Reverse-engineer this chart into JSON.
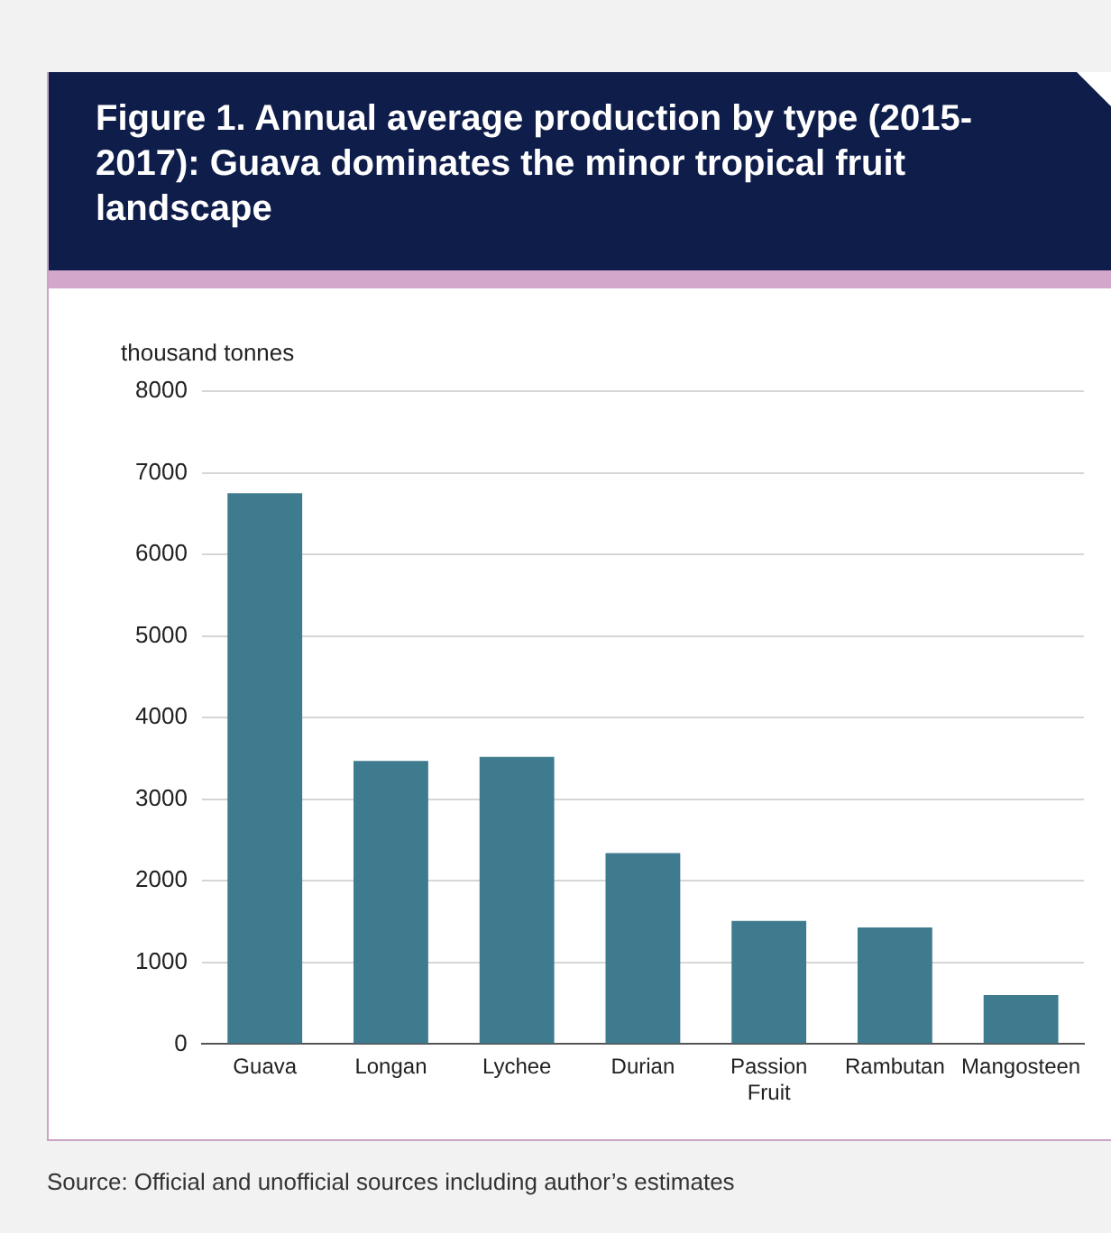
{
  "chart_data": {
    "type": "bar",
    "title": "Figure 1. Annual average production by type (2015-2017): Guava dominates the minor tropical fruit landscape",
    "ylabel": "thousand tonnes",
    "categories": [
      "Guava",
      "Longan",
      "Lychee",
      "Durian",
      "Passion Fruit",
      "Rambutan",
      "Mangosteen"
    ],
    "values": [
      6750,
      3470,
      3520,
      2340,
      1510,
      1430,
      600
    ],
    "color": "#3e7b8f",
    "ylim": [
      0,
      8000
    ],
    "yticks": [
      0,
      1000,
      2000,
      3000,
      4000,
      5000,
      6000,
      7000,
      8000
    ],
    "grid": "y",
    "legend": false,
    "annotations": [
      "Source: Official and unofficial sources including author’s estimates"
    ]
  }
}
